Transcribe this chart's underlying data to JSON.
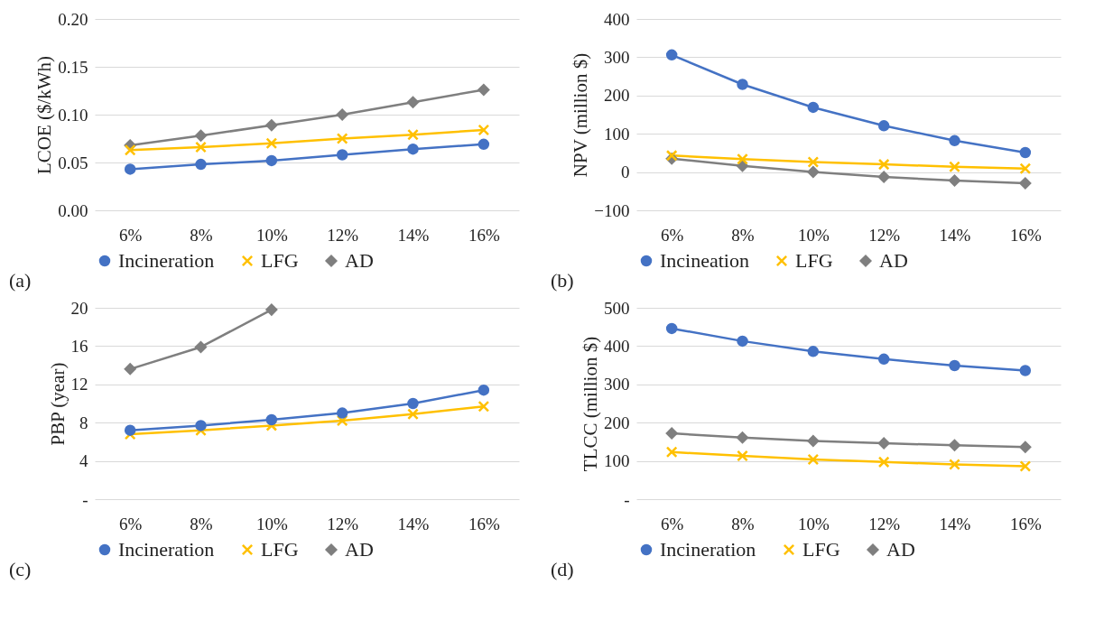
{
  "chart_data": [
    {
      "type": "line",
      "ylabel": "LCOE ($/kWh)",
      "annotations": [
        "(a)"
      ],
      "categories": [
        "6%",
        "8%",
        "10%",
        "12%",
        "14%",
        "16%"
      ],
      "ylim": [
        0,
        0.2
      ],
      "yticks": [
        {
          "value": 0,
          "label": "0.00"
        },
        {
          "value": 0.05,
          "label": "0.05"
        },
        {
          "value": 0.1,
          "label": "0.10"
        },
        {
          "value": 0.15,
          "label": "0.15"
        },
        {
          "value": 0.2,
          "label": "0.20"
        }
      ],
      "grid": "y",
      "legend": "bottom",
      "series": [
        {
          "name": "Incineration",
          "color": "#4472c4",
          "marker": "circle",
          "values": [
            0.043,
            0.048,
            0.052,
            0.058,
            0.064,
            0.069
          ]
        },
        {
          "name": "LFG",
          "color": "#ffc000",
          "marker": "cross",
          "values": [
            0.063,
            0.066,
            0.07,
            0.075,
            0.079,
            0.084
          ]
        },
        {
          "name": "AD",
          "color": "#7f7f7f",
          "marker": "diamond",
          "values": [
            0.068,
            0.078,
            0.089,
            0.1,
            0.113,
            0.126
          ]
        }
      ]
    },
    {
      "type": "line",
      "ylabel": "NPV (million $)",
      "annotations": [
        "(b)"
      ],
      "categories": [
        "6%",
        "8%",
        "10%",
        "12%",
        "14%",
        "16%"
      ],
      "ylim": [
        -100,
        400
      ],
      "yticks": [
        -100,
        0,
        100,
        200,
        300,
        400
      ],
      "grid": "y",
      "legend": "bottom",
      "series": [
        {
          "name": "Incineation",
          "color": "#4472c4",
          "marker": "circle",
          "values": [
            306,
            229,
            169,
            121,
            82,
            51
          ]
        },
        {
          "name": "LFG",
          "color": "#ffc000",
          "marker": "cross",
          "values": [
            43,
            34,
            26,
            20,
            14,
            9
          ]
        },
        {
          "name": "AD",
          "color": "#7f7f7f",
          "marker": "diamond",
          "values": [
            35,
            16,
            0,
            -13,
            -22,
            -29
          ]
        }
      ]
    },
    {
      "type": "line",
      "ylabel": "PBP (year)",
      "annotations": [
        "(c)"
      ],
      "categories": [
        "6%",
        "8%",
        "10%",
        "12%",
        "14%",
        "16%"
      ],
      "ylim": [
        0,
        20
      ],
      "yticks": [
        {
          "value": 0,
          "label": "-"
        },
        4,
        8,
        12,
        16,
        20
      ],
      "grid": "y",
      "legend": "bottom",
      "series": [
        {
          "name": "Incineration",
          "color": "#4472c4",
          "marker": "circle",
          "values": [
            7.2,
            7.7,
            8.3,
            9.0,
            10.0,
            11.4
          ]
        },
        {
          "name": "LFG",
          "color": "#ffc000",
          "marker": "cross",
          "values": [
            6.8,
            7.2,
            7.7,
            8.2,
            8.9,
            9.7
          ]
        },
        {
          "name": "AD",
          "color": "#7f7f7f",
          "marker": "diamond",
          "values": [
            13.6,
            15.9,
            19.8,
            null,
            null,
            null
          ]
        }
      ]
    },
    {
      "type": "line",
      "ylabel": "TLCC (million $)",
      "annotations": [
        "(d)"
      ],
      "categories": [
        "6%",
        "8%",
        "10%",
        "12%",
        "14%",
        "16%"
      ],
      "ylim": [
        0,
        500
      ],
      "yticks": [
        {
          "value": 0,
          "label": "-"
        },
        100,
        200,
        300,
        400,
        500
      ],
      "grid": "y",
      "legend": "bottom",
      "series": [
        {
          "name": "Incineration",
          "color": "#4472c4",
          "marker": "circle",
          "values": [
            446,
            413,
            386,
            366,
            349,
            336
          ]
        },
        {
          "name": "LFG",
          "color": "#ffc000",
          "marker": "cross",
          "values": [
            123,
            113,
            104,
            97,
            91,
            86
          ]
        },
        {
          "name": "AD",
          "color": "#7f7f7f",
          "marker": "diamond",
          "values": [
            172,
            161,
            152,
            146,
            141,
            136
          ]
        }
      ]
    }
  ]
}
